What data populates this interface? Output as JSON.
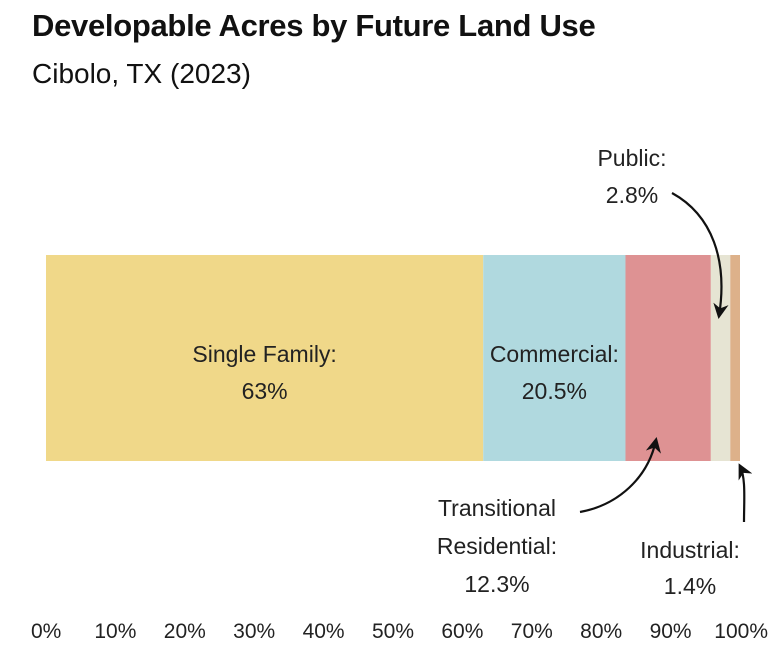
{
  "title": "Developable Acres by Future Land Use",
  "subtitle": "Cibolo, TX (2023)",
  "chart_data": {
    "type": "bar",
    "orientation": "horizontal-stacked-100",
    "title": "Developable Acres by Future Land Use",
    "subtitle": "Cibolo, TX (2023)",
    "xlabel": "",
    "ylabel": "",
    "xlim": [
      0,
      100
    ],
    "grid": false,
    "series": [
      {
        "name": "Single Family",
        "value": 63.0,
        "value_label": "63%",
        "color": "#F0D889",
        "label_lines": [
          "Single Family:",
          "63%"
        ],
        "label_placement": "inside"
      },
      {
        "name": "Commercial",
        "value": 20.5,
        "value_label": "20.5%",
        "color": "#B0D9DF",
        "label_lines": [
          "Commercial:",
          "20.5%"
        ],
        "label_placement": "inside"
      },
      {
        "name": "Transitional Residential",
        "value": 12.3,
        "value_label": "12.3%",
        "color": "#DE9293",
        "label_lines": [
          "Transitional",
          "Residential:",
          "12.3%"
        ],
        "label_placement": "below-callout"
      },
      {
        "name": "Public",
        "value": 2.8,
        "value_label": "2.8%",
        "color": "#E6E4D3",
        "label_lines": [
          "Public:",
          "2.8%"
        ],
        "label_placement": "above-callout"
      },
      {
        "name": "Industrial",
        "value": 1.4,
        "value_label": "1.4%",
        "color": "#DDB18A",
        "label_lines": [
          "Industrial:",
          "1.4%"
        ],
        "label_placement": "below-callout"
      }
    ],
    "ticks": [
      "0%",
      "10%",
      "20%",
      "30%",
      "40%",
      "50%",
      "60%",
      "70%",
      "80%",
      "90%",
      "100%"
    ]
  }
}
